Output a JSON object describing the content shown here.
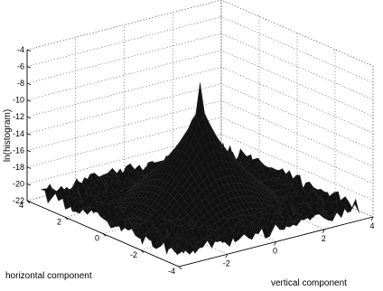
{
  "chart_data": {
    "type": "surface3d",
    "title": "",
    "xlabel": "horizontal component",
    "ylabel": "vertical component",
    "zlabel": "ln(histogram)",
    "xlim": [
      -4,
      4
    ],
    "ylim": [
      -4,
      4
    ],
    "zlim": [
      -22,
      -4
    ],
    "x_ticks": [
      "-4",
      "-2",
      "0",
      "2",
      "4"
    ],
    "y_ticks": [
      "-2",
      "0",
      "2",
      "4"
    ],
    "z_ticks": [
      "-4",
      "-6",
      "-8",
      "-10",
      "-12",
      "-14",
      "-16",
      "-18",
      "-20",
      "-22"
    ],
    "grid": true,
    "peak": {
      "x": 0,
      "y": 0,
      "z": -7
    },
    "floor_level": -21,
    "surface_color": "#111111"
  }
}
